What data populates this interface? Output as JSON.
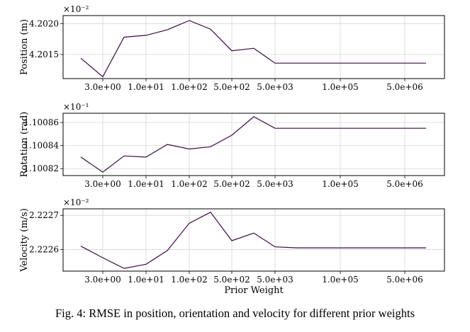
{
  "caption": "Fig. 4: RMSE in position, orientation and velocity for different prior weights",
  "line_color": "#3b0a45",
  "chart_data": [
    {
      "type": "line",
      "ylabel": "Position (m)",
      "scale_label": "×10⁻²",
      "xlabel": "",
      "ylim": [
        4.20111,
        4.20213
      ],
      "yticks": [
        {
          "value": 4.2015,
          "label": "4.2015"
        },
        {
          "value": 4.202,
          "label": "4.2020"
        }
      ],
      "xticks": [
        {
          "value": 3,
          "label": "3.0e+00"
        },
        {
          "value": 10,
          "label": "1.0e+01"
        },
        {
          "value": 100,
          "label": "1.0e+02"
        },
        {
          "value": 500,
          "label": "5.0e+02"
        },
        {
          "value": 5000,
          "label": "5.0e+03"
        },
        {
          "value": 100000,
          "label": "1.0e+05"
        },
        {
          "value": 5000000,
          "label": "5.0e+06"
        }
      ],
      "x": [
        1,
        3,
        5,
        10,
        20,
        100,
        200,
        500,
        1000,
        5000,
        10000,
        100000,
        5000000,
        10000000
      ],
      "series": [
        {
          "values": [
            4.20144,
            4.20114,
            4.20178,
            4.20181,
            4.2019,
            4.20205,
            4.20191,
            4.20156,
            4.2016,
            4.20136,
            4.20136,
            4.20136,
            4.20136,
            4.20136
          ]
        }
      ],
      "grid": true
    },
    {
      "type": "line",
      "ylabel": "Rotation (rad)",
      "scale_label": "×10⁻¹",
      "xlabel": "",
      "ylim": [
        1.100814,
        1.100868
      ],
      "yticks": [
        {
          "value": 1.10082,
          "label": "1.10082"
        },
        {
          "value": 1.10084,
          "label": "1.10084"
        },
        {
          "value": 1.10086,
          "label": "1.10086"
        }
      ],
      "xticks": [
        {
          "value": 3,
          "label": "3.0e+00"
        },
        {
          "value": 10,
          "label": "1.0e+01"
        },
        {
          "value": 100,
          "label": "1.0e+02"
        },
        {
          "value": 500,
          "label": "5.0e+02"
        },
        {
          "value": 5000,
          "label": "5.0e+03"
        },
        {
          "value": 100000,
          "label": "1.0e+05"
        },
        {
          "value": 5000000,
          "label": "5.0e+06"
        }
      ],
      "x": [
        1,
        3,
        5,
        10,
        20,
        100,
        200,
        500,
        1000,
        5000,
        10000,
        100000,
        5000000,
        10000000
      ],
      "series": [
        {
          "values": [
            1.10083,
            1.100817,
            1.100831,
            1.10083,
            1.100841,
            1.100837,
            1.100839,
            1.100849,
            1.100865,
            1.100855,
            1.100855,
            1.100855,
            1.100855,
            1.100855
          ]
        }
      ],
      "grid": true
    },
    {
      "type": "line",
      "ylabel": "Velocity (m/s)",
      "scale_label": "×10⁻²",
      "xlabel": "Prior Weight",
      "ylim": [
        2.222537,
        2.222719
      ],
      "yticks": [
        {
          "value": 2.2226,
          "label": "2.2226"
        },
        {
          "value": 2.2227,
          "label": "2.2227"
        }
      ],
      "xticks": [
        {
          "value": 3,
          "label": "3.0e+00"
        },
        {
          "value": 10,
          "label": "1.0e+01"
        },
        {
          "value": 100,
          "label": "1.0e+02"
        },
        {
          "value": 500,
          "label": "5.0e+02"
        },
        {
          "value": 5000,
          "label": "5.0e+03"
        },
        {
          "value": 100000,
          "label": "1.0e+05"
        },
        {
          "value": 5000000,
          "label": "5.0e+06"
        }
      ],
      "x": [
        1,
        3,
        5,
        10,
        20,
        100,
        200,
        500,
        1000,
        5000,
        10000,
        100000,
        5000000,
        10000000
      ],
      "series": [
        {
          "values": [
            2.22261,
            2.222576,
            2.222545,
            2.222557,
            2.222597,
            2.222677,
            2.222709,
            2.222626,
            2.222648,
            2.222608,
            2.222605,
            2.222605,
            2.222605,
            2.222605
          ]
        }
      ],
      "grid": true
    }
  ]
}
